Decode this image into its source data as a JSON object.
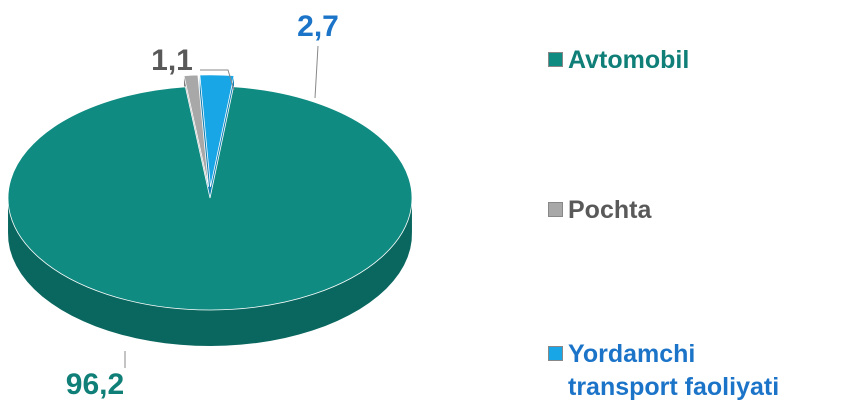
{
  "chart_data": {
    "type": "pie",
    "categories": [
      "Avtomobil",
      "Pochta",
      "Yordamchi transport faoliyati"
    ],
    "series": [
      {
        "values": [
          96.2,
          1.1,
          2.7
        ],
        "value_labels": [
          "96,2",
          "1,1",
          "2,7"
        ],
        "colors": [
          "#0f8b82",
          "#a8a8a8",
          "#19a6e6"
        ]
      }
    ],
    "legend": "right"
  }
}
